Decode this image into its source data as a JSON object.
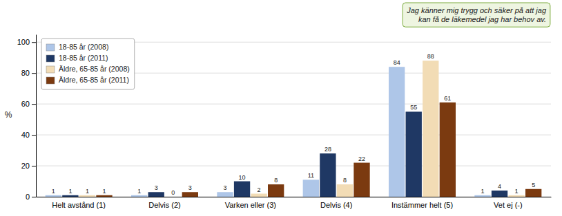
{
  "chart_data": {
    "type": "bar",
    "categories": [
      "Helt avstånd (1)",
      "Delvis (2)",
      "Varken eller (3)",
      "Delvis (4)",
      "Instämmer helt (5)",
      "Vet ej (-)"
    ],
    "series": [
      {
        "name": "18-85  år (2008)",
        "color": "#aec6e8",
        "values": [
          1,
          1,
          3,
          11,
          84,
          1
        ]
      },
      {
        "name": "18-85  år (2011)",
        "color": "#1f3864",
        "values": [
          1,
          3,
          10,
          28,
          55,
          4
        ]
      },
      {
        "name": "Äldre, 65-85 år (2008)",
        "color": "#f2dcb5",
        "values": [
          1,
          0,
          2,
          8,
          88,
          1
        ]
      },
      {
        "name": "Äldre, 65-85 år (2011)",
        "color": "#7b3a10",
        "values": [
          1,
          3,
          8,
          22,
          61,
          5
        ]
      }
    ],
    "ylabel": "%",
    "ylim": [
      0,
      105
    ],
    "yticks": [
      0,
      20,
      40,
      60,
      80,
      100
    ],
    "grid": true,
    "legend": "upper left",
    "data_labels": true,
    "annotation": "Jag känner mig trygg och säker på att jag\nkan få de läkemedel jag har behov av."
  }
}
